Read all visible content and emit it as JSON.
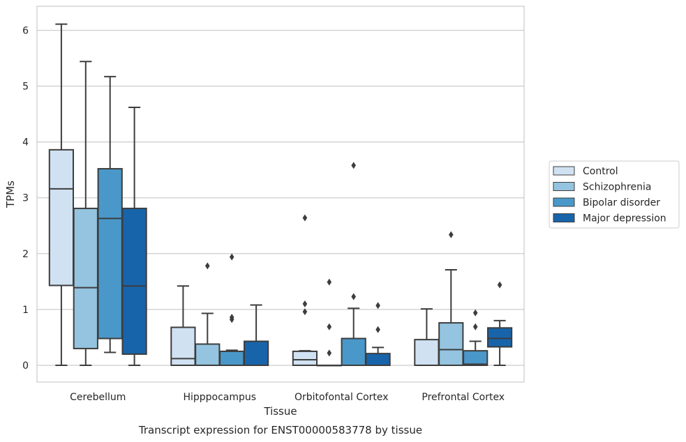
{
  "chart_data": {
    "type": "box",
    "xlabel": "Tissue",
    "ylabel": "TPMs",
    "caption": "Transcript expression for ENST00000583778 by tissue",
    "ylim": [
      -0.3,
      6.43
    ],
    "yticks": [
      0,
      1,
      2,
      3,
      4,
      5,
      6
    ],
    "categories": [
      "Cerebellum",
      "Hipppocampus",
      "Orbitofontal Cortex",
      "Prefrontal Cortex"
    ],
    "grid": "horizontal",
    "legend_placement": "right",
    "series": [
      {
        "name": "Control",
        "color": "#d0e1f2",
        "boxes": [
          {
            "whislo": 0.0,
            "q1": 1.43,
            "med": 3.16,
            "q3": 3.86,
            "whishi": 6.11,
            "fliers": []
          },
          {
            "whislo": 0.0,
            "q1": 0.0,
            "med": 0.12,
            "q3": 0.68,
            "whishi": 1.42,
            "fliers": []
          },
          {
            "whislo": 0.0,
            "q1": 0.0,
            "med": 0.1,
            "q3": 0.25,
            "whishi": 0.26,
            "fliers": [
              0.96,
              1.1,
              2.64
            ]
          },
          {
            "whislo": 0.0,
            "q1": 0.0,
            "med": 0.0,
            "q3": 0.46,
            "whishi": 1.01,
            "fliers": []
          }
        ]
      },
      {
        "name": "Schizophrenia",
        "color": "#94c4df",
        "boxes": [
          {
            "whislo": 0.0,
            "q1": 0.3,
            "med": 1.39,
            "q3": 2.81,
            "whishi": 5.44,
            "fliers": []
          },
          {
            "whislo": 0.0,
            "q1": 0.0,
            "med": 0.0,
            "q3": 0.38,
            "whishi": 0.93,
            "fliers": [
              1.78
            ]
          },
          {
            "whislo": 0.0,
            "q1": 0.0,
            "med": 0.0,
            "q3": 0.0,
            "whishi": 0.0,
            "fliers": [
              0.22,
              0.69,
              1.49
            ]
          },
          {
            "whislo": 0.0,
            "q1": 0.0,
            "med": 0.28,
            "q3": 0.76,
            "whishi": 1.71,
            "fliers": [
              2.34
            ]
          }
        ]
      },
      {
        "name": "Bipolar disorder",
        "color": "#4a98c9",
        "boxes": [
          {
            "whislo": 0.23,
            "q1": 0.48,
            "med": 2.63,
            "q3": 3.52,
            "whishi": 5.17,
            "fliers": []
          },
          {
            "whislo": 0.0,
            "q1": 0.0,
            "med": 0.0,
            "q3": 0.25,
            "whishi": 0.27,
            "fliers": [
              0.82,
              0.86,
              1.94
            ]
          },
          {
            "whislo": 0.0,
            "q1": 0.0,
            "med": 0.0,
            "q3": 0.48,
            "whishi": 1.02,
            "fliers": [
              1.23,
              3.58
            ]
          },
          {
            "whislo": 0.0,
            "q1": 0.0,
            "med": 0.02,
            "q3": 0.26,
            "whishi": 0.43,
            "fliers": [
              0.69,
              0.94
            ]
          }
        ]
      },
      {
        "name": "Major depression",
        "color": "#1764ab",
        "boxes": [
          {
            "whislo": 0.0,
            "q1": 0.2,
            "med": 1.42,
            "q3": 2.81,
            "whishi": 4.62,
            "fliers": []
          },
          {
            "whislo": 0.0,
            "q1": 0.0,
            "med": 0.0,
            "q3": 0.43,
            "whishi": 1.08,
            "fliers": []
          },
          {
            "whislo": 0.0,
            "q1": 0.0,
            "med": 0.0,
            "q3": 0.21,
            "whishi": 0.32,
            "fliers": [
              0.64,
              1.07
            ]
          },
          {
            "whislo": 0.0,
            "q1": 0.33,
            "med": 0.48,
            "q3": 0.67,
            "whishi": 0.8,
            "fliers": [
              1.44
            ]
          }
        ]
      }
    ]
  }
}
